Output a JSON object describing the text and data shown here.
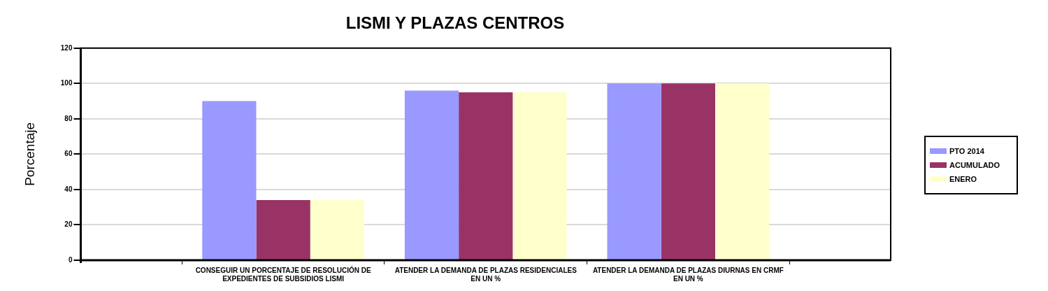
{
  "chart_data": {
    "type": "bar",
    "title": "LISMI Y PLAZAS CENTROS",
    "ylabel": "Porcentaje",
    "categories": [
      null,
      "CONSEGUIR UN PORCENTAJE DE RESOLUCIÓN DE EXPEDIENTES DE SUBSIDIOS LISMI",
      "ATENDER LA DEMANDA DE PLAZAS RESIDENCIALES EN UN %",
      "ATENDER LA DEMANDA DE PLAZAS DIURNAS EN CRMF EN UN %",
      null
    ],
    "series": [
      {
        "name": "PTO 2014",
        "color": "#9999ff",
        "values": [
          null,
          90,
          96,
          100,
          null
        ]
      },
      {
        "name": "ACUMULADO",
        "color": "#993366",
        "values": [
          null,
          34,
          95,
          100,
          null
        ]
      },
      {
        "name": "ENERO",
        "color": "#ffffcc",
        "values": [
          null,
          34,
          95,
          100,
          null
        ]
      }
    ],
    "ylim": [
      0,
      120
    ],
    "yticks": [
      0,
      20,
      40,
      60,
      80,
      100,
      120
    ],
    "grid": "y",
    "legend": "right"
  }
}
